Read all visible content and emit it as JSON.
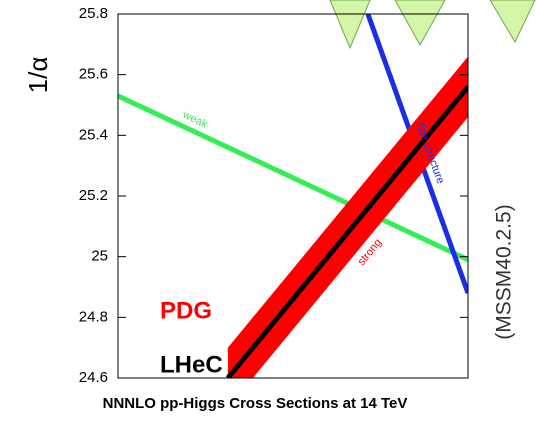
{
  "chart_data": {
    "type": "line",
    "title": "NNNLO pp-Higgs Cross Sections at 14 TeV",
    "y_label": "1/α",
    "side_label": "(MSSM40.2.5)",
    "annotations": [
      {
        "text": "PDG",
        "color": "#ff0000"
      },
      {
        "text": "LHeC",
        "color": "#000000"
      }
    ],
    "xlim": [
      0,
      1
    ],
    "ylim": [
      24.6,
      25.8
    ],
    "yticks": [
      24.6,
      24.8,
      25,
      25.2,
      25.4,
      25.6,
      25.8
    ],
    "series": [
      {
        "name": "weak",
        "color": "#33ee55",
        "x": [
          0,
          1
        ],
        "values": [
          25.53,
          24.99
        ]
      },
      {
        "name": "fine structure",
        "color": "#1a2ee6",
        "x": [
          0.714,
          1
        ],
        "values": [
          25.8,
          24.88
        ]
      },
      {
        "name": "strong",
        "color": "#000000",
        "band_color": "#ff0000",
        "x": [
          0.314,
          1
        ],
        "values": [
          24.6,
          25.56
        ],
        "error": 0.1
      }
    ]
  }
}
